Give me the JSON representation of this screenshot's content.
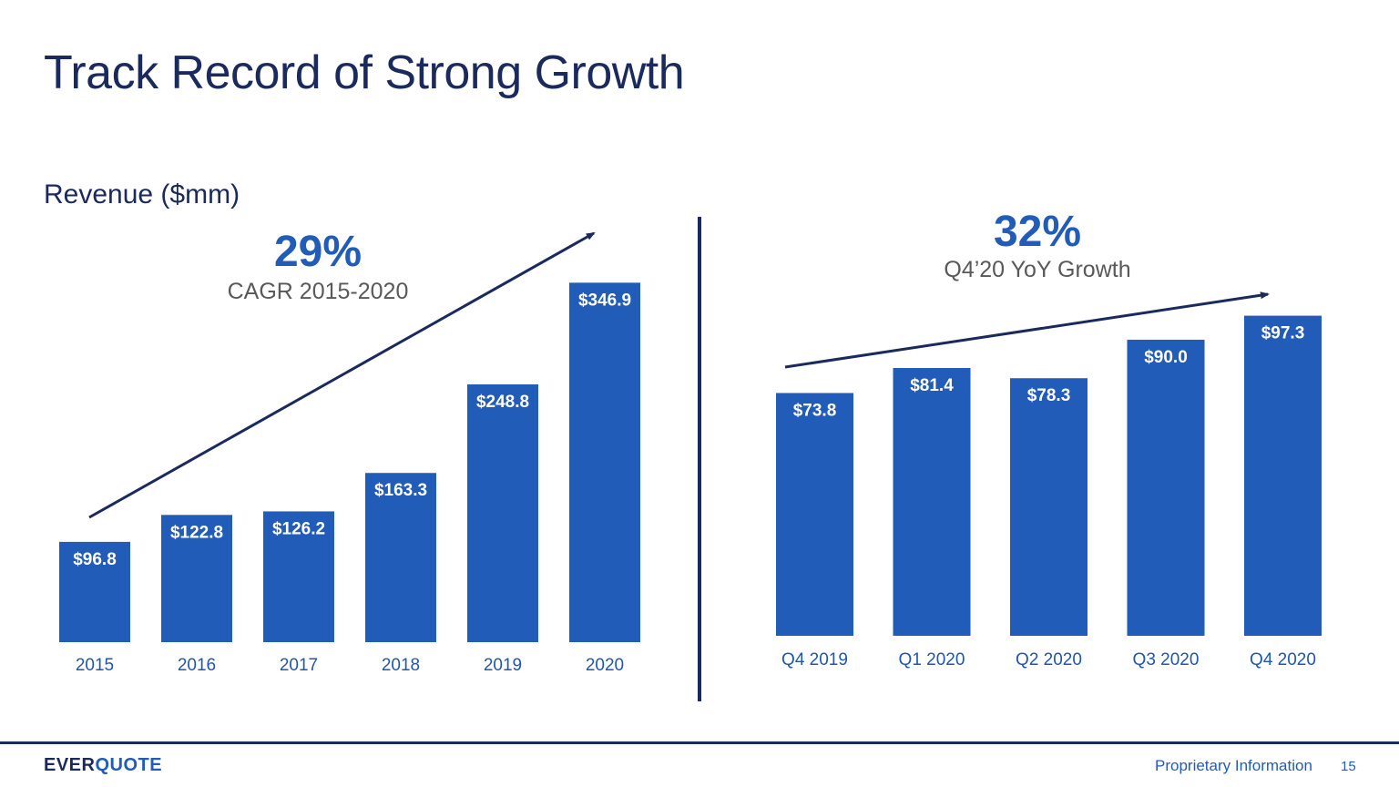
{
  "slide": {
    "title": "Track Record of Strong Growth",
    "subtitle": "Revenue ($mm)"
  },
  "chart_data": [
    {
      "type": "bar",
      "categories": [
        "2015",
        "2016",
        "2017",
        "2018",
        "2019",
        "2020"
      ],
      "values": [
        96.8,
        122.8,
        126.2,
        163.3,
        248.8,
        346.9
      ],
      "data_labels": [
        "$96.8",
        "$122.8",
        "$126.2",
        "$163.3",
        "$248.8",
        "$346.9"
      ],
      "annotation": {
        "value": "29%",
        "text": "CAGR 2015-2020"
      },
      "trend_arrow": true,
      "grid": false
    },
    {
      "type": "bar",
      "categories": [
        "Q4 2019",
        "Q1 2020",
        "Q2 2020",
        "Q3 2020",
        "Q4 2020"
      ],
      "values": [
        73.8,
        81.4,
        78.3,
        90.0,
        97.3
      ],
      "data_labels": [
        "$73.8",
        "$81.4",
        "$78.3",
        "$90.0",
        "$97.3"
      ],
      "annotation": {
        "value": "32%",
        "text": "Q4’20 YoY Growth"
      },
      "trend_arrow": true,
      "grid": false
    }
  ],
  "footer": {
    "logo_part1": "EVER",
    "logo_part2": "QUOTE",
    "proprietary": "Proprietary Information",
    "page_number": "15"
  },
  "colors": {
    "bar": "#215cb8",
    "navy": "#1b2a5c"
  }
}
